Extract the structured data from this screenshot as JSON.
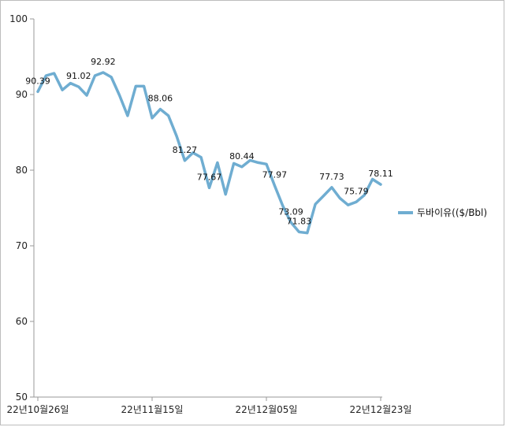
{
  "chart_data": {
    "type": "line",
    "title": "",
    "xlabel": "",
    "ylabel": "",
    "ylim": [
      50,
      100
    ],
    "yticks": [
      50,
      60,
      70,
      80,
      90,
      100
    ],
    "grid": false,
    "legend_position": "right",
    "x_tick_labels": [
      "22년10월26일",
      "22년11월15일",
      "22년12월05일",
      "22년12월23일"
    ],
    "x_tick_indices": [
      0,
      14,
      28,
      42
    ],
    "series": [
      {
        "name": "두바이유(($/Bbl)",
        "color": "#6fadd1",
        "values": [
          90.39,
          92.5,
          92.8,
          90.6,
          91.5,
          91.02,
          89.9,
          92.5,
          92.92,
          92.3,
          89.9,
          87.2,
          91.1,
          91.1,
          86.9,
          88.06,
          87.2,
          84.5,
          81.27,
          82.3,
          81.7,
          77.67,
          81.0,
          76.8,
          80.9,
          80.44,
          81.3,
          81.0,
          80.8,
          77.97,
          75.3,
          73.09,
          71.83,
          71.7,
          75.5,
          76.6,
          77.73,
          76.3,
          75.4,
          75.79,
          76.7,
          78.8,
          78.11
        ],
        "data_labels": [
          {
            "index": 0,
            "text": "90.39"
          },
          {
            "index": 5,
            "text": "91.02"
          },
          {
            "index": 8,
            "text": "92.92"
          },
          {
            "index": 15,
            "text": "88.06"
          },
          {
            "index": 18,
            "text": "81.27"
          },
          {
            "index": 21,
            "text": "77.67"
          },
          {
            "index": 25,
            "text": "80.44"
          },
          {
            "index": 29,
            "text": "77.97"
          },
          {
            "index": 31,
            "text": "73.09"
          },
          {
            "index": 32,
            "text": "71.83"
          },
          {
            "index": 36,
            "text": "77.73"
          },
          {
            "index": 39,
            "text": "75.79"
          },
          {
            "index": 42,
            "text": "78.11"
          }
        ]
      }
    ]
  }
}
